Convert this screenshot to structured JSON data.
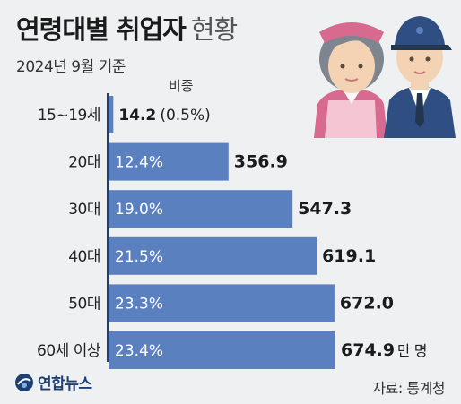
{
  "title": {
    "bold": "연령대별 취업자",
    "light": "현황"
  },
  "subtitle": "2024년 9월 기준",
  "share_header": "비중",
  "unit": "만 명",
  "source": "자료: 통계청",
  "logo": "연합뉴스",
  "colors": {
    "bar": "#5b80c0",
    "axis": "#1e3f73",
    "background": "#eef0f1"
  },
  "chart_data": {
    "type": "bar",
    "orientation": "horizontal",
    "categories": [
      "15~19세",
      "20대",
      "30대",
      "40대",
      "50대",
      "60세 이상"
    ],
    "values": [
      14.2,
      356.9,
      547.3,
      619.1,
      672.0,
      674.9
    ],
    "value_labels": [
      "14.2",
      "356.9",
      "547.3",
      "619.1",
      "672.0",
      "674.9"
    ],
    "shares": [
      "(0.5%)",
      "12.4%",
      "19.0%",
      "21.5%",
      "23.3%",
      "23.4%"
    ],
    "title": "연령대별 취업자 현황",
    "xlim": [
      0,
      674.9
    ]
  }
}
